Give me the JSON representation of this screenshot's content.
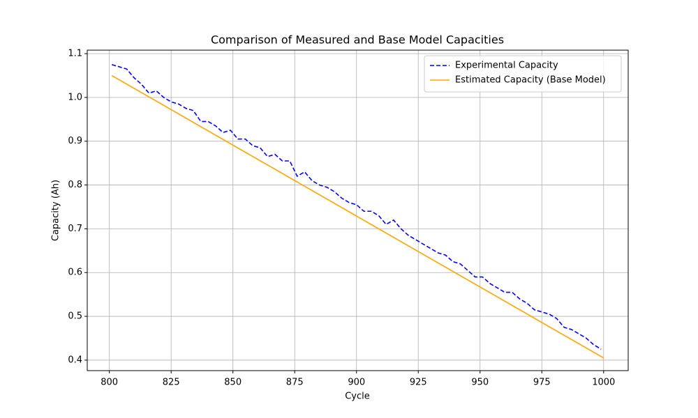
{
  "chart_data": {
    "type": "line",
    "title": "Comparison of Measured and Base Model Capacities",
    "x_label": "Cycle",
    "y_label": "Capacity (Ah)",
    "xlim": [
      791.05,
      1009.95
    ],
    "ylim": [
      0.376,
      1.108
    ],
    "xticks": [
      800,
      825,
      850,
      875,
      900,
      925,
      950,
      975,
      1000
    ],
    "yticks": [
      0.4,
      0.5,
      0.6,
      0.7,
      0.8,
      0.9,
      {
        "value": 1,
        "label": "1.0"
      },
      1.1
    ],
    "grid": true,
    "legend": "upper right",
    "series": [
      {
        "name": "Experimental Capacity",
        "color": "#0000ff",
        "linestyle": "dashed",
        "x": [
          801,
          804,
          807,
          810,
          813,
          816,
          819,
          822,
          825,
          828,
          831,
          834,
          837,
          840,
          843,
          846,
          849,
          852,
          855,
          858,
          861,
          864,
          867,
          870,
          873,
          876,
          879,
          882,
          885,
          888,
          891,
          894,
          897,
          900,
          903,
          906,
          909,
          912,
          915,
          918,
          921,
          924,
          927,
          930,
          933,
          936,
          939,
          942,
          945,
          948,
          951,
          954,
          957,
          960,
          963,
          966,
          969,
          972,
          975,
          978,
          981,
          984,
          987,
          990,
          993,
          996,
          999
        ],
        "values": [
          1.075,
          1.07,
          1.065,
          1.045,
          1.03,
          1.01,
          1.015,
          1.0,
          0.99,
          0.985,
          0.975,
          0.97,
          0.945,
          0.945,
          0.935,
          0.92,
          0.925,
          0.905,
          0.905,
          0.89,
          0.885,
          0.865,
          0.87,
          0.855,
          0.855,
          0.82,
          0.83,
          0.81,
          0.8,
          0.795,
          0.785,
          0.77,
          0.76,
          0.755,
          0.74,
          0.74,
          0.73,
          0.71,
          0.72,
          0.7,
          0.685,
          0.675,
          0.665,
          0.655,
          0.645,
          0.64,
          0.625,
          0.62,
          0.605,
          0.59,
          0.59,
          0.575,
          0.565,
          0.555,
          0.555,
          0.54,
          0.53,
          0.515,
          0.51,
          0.505,
          0.495,
          0.475,
          0.47,
          0.46,
          0.45,
          0.435,
          0.425
        ]
      },
      {
        "name": "Estimated Capacity (Base Model)",
        "color": "#ffa500",
        "linestyle": "solid",
        "x": [
          801,
          1000
        ],
        "values": [
          1.05,
          0.405
        ]
      }
    ]
  }
}
